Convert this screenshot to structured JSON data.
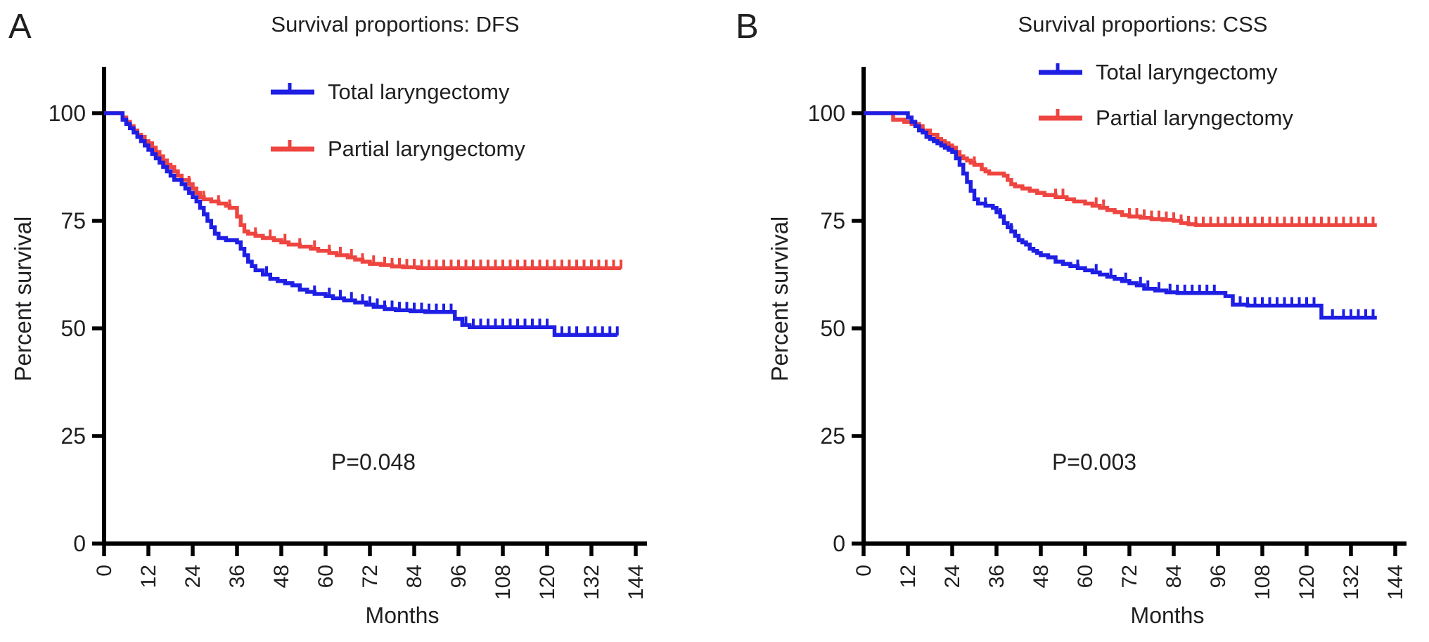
{
  "figure": {
    "background": "#ffffff",
    "text_color": "#1f1f21",
    "axis_color": "#000000",
    "colors": {
      "total": "#1e1ee4",
      "partial": "#ee4540"
    },
    "x_axis": {
      "label": "Months",
      "range": [
        0,
        144
      ],
      "ticks": [
        0,
        12,
        24,
        36,
        48,
        60,
        72,
        84,
        96,
        108,
        120,
        132,
        144
      ]
    },
    "y_axis": {
      "label": "Percent survival",
      "range": [
        0,
        100
      ],
      "ticks": [
        0,
        25,
        50,
        75,
        100
      ]
    }
  },
  "chart_data": [
    {
      "panel": "A",
      "type": "line",
      "subtype": "kaplan-meier-step",
      "title": "Survival proportions: DFS",
      "p_value_label": "P=0.048",
      "xlabel": "Months",
      "ylabel": "Percent survival",
      "xlim": [
        0,
        144
      ],
      "ylim": [
        0,
        100
      ],
      "legend_position": "top-center",
      "grid": false,
      "series": [
        {
          "name": "Total laryngectomy",
          "color_key": "total",
          "points": [
            [
              0,
              100
            ],
            [
              4,
              100
            ],
            [
              5,
              98.5
            ],
            [
              6,
              97.5
            ],
            [
              7,
              96.5
            ],
            [
              8,
              95.5
            ],
            [
              9,
              94.5
            ],
            [
              10,
              93.5
            ],
            [
              11,
              92.5
            ],
            [
              12,
              91.5
            ],
            [
              13,
              90.5
            ],
            [
              14,
              89.5
            ],
            [
              15,
              88.5
            ],
            [
              16,
              87.5
            ],
            [
              17,
              86.5
            ],
            [
              18,
              85.5
            ],
            [
              19,
              84.5
            ],
            [
              21,
              83.5
            ],
            [
              22,
              82.5
            ],
            [
              23,
              81.5
            ],
            [
              24,
              80.5
            ],
            [
              25,
              79.5
            ],
            [
              26,
              78
            ],
            [
              27,
              76.5
            ],
            [
              28,
              75
            ],
            [
              29,
              73.5
            ],
            [
              30,
              72
            ],
            [
              31,
              71
            ],
            [
              33,
              70.5
            ],
            [
              36,
              70
            ],
            [
              37,
              68.5
            ],
            [
              38,
              67
            ],
            [
              39,
              65.5
            ],
            [
              40,
              64.5
            ],
            [
              41,
              63.5
            ],
            [
              43,
              62.5
            ],
            [
              45,
              61.5
            ],
            [
              47,
              61
            ],
            [
              49,
              60.5
            ],
            [
              51,
              60
            ],
            [
              53,
              59
            ],
            [
              55,
              58.5
            ],
            [
              57,
              58
            ],
            [
              60,
              57.5
            ],
            [
              62,
              57
            ],
            [
              65,
              56.5
            ],
            [
              68,
              56
            ],
            [
              71,
              55.5
            ],
            [
              73,
              55
            ],
            [
              76,
              54.5
            ],
            [
              79,
              54.2
            ],
            [
              83,
              54
            ],
            [
              87,
              53.8
            ],
            [
              94,
              53.8
            ],
            [
              95,
              52.2
            ],
            [
              97,
              50.8
            ],
            [
              99,
              50.3
            ],
            [
              120,
              50.3
            ],
            [
              122,
              48.5
            ],
            [
              139,
              48.5
            ]
          ],
          "censor_months": [
            30,
            44,
            57,
            61,
            64,
            67,
            70,
            72,
            74,
            76,
            78,
            80,
            82,
            84,
            86,
            88,
            90,
            92,
            94,
            98,
            100,
            102,
            104,
            106,
            108,
            110,
            112,
            114,
            116,
            118,
            120,
            124,
            126,
            128,
            131,
            133,
            135,
            137,
            139
          ]
        },
        {
          "name": "Partial laryngectomy",
          "color_key": "partial",
          "points": [
            [
              0,
              100
            ],
            [
              4,
              100
            ],
            [
              5,
              99
            ],
            [
              6,
              98
            ],
            [
              7,
              97
            ],
            [
              8,
              96
            ],
            [
              9,
              95
            ],
            [
              10,
              94.5
            ],
            [
              11,
              93.5
            ],
            [
              12,
              93
            ],
            [
              13,
              92
            ],
            [
              14,
              91
            ],
            [
              15,
              90
            ],
            [
              16,
              89
            ],
            [
              17,
              88
            ],
            [
              18,
              87.5
            ],
            [
              19,
              86.5
            ],
            [
              20,
              85.5
            ],
            [
              21,
              84.5
            ],
            [
              23,
              83.5
            ],
            [
              24,
              82.5
            ],
            [
              25,
              81.5
            ],
            [
              26,
              80.5
            ],
            [
              27,
              80
            ],
            [
              29,
              79.5
            ],
            [
              31,
              79
            ],
            [
              33,
              78.5
            ],
            [
              34,
              78
            ],
            [
              36,
              76
            ],
            [
              37,
              74
            ],
            [
              38,
              72.5
            ],
            [
              39,
              72
            ],
            [
              41,
              71.5
            ],
            [
              43,
              71
            ],
            [
              46,
              70.5
            ],
            [
              48,
              70
            ],
            [
              50,
              69.5
            ],
            [
              53,
              69
            ],
            [
              56,
              68.5
            ],
            [
              58,
              68
            ],
            [
              61,
              67.5
            ],
            [
              63,
              67
            ],
            [
              66,
              66.5
            ],
            [
              68,
              66
            ],
            [
              70,
              65.5
            ],
            [
              72,
              65
            ],
            [
              75,
              64.7
            ],
            [
              78,
              64.4
            ],
            [
              81,
              64.2
            ],
            [
              85,
              64
            ],
            [
              140,
              64
            ]
          ],
          "censor_months": [
            23,
            27,
            31,
            34,
            41,
            45,
            49,
            53,
            57,
            61,
            64,
            67,
            70,
            73,
            76,
            78,
            80,
            82,
            84,
            86,
            88,
            90,
            92,
            94,
            96,
            98,
            100,
            102,
            104,
            106,
            108,
            110,
            112,
            114,
            116,
            118,
            120,
            122,
            124,
            126,
            128,
            130,
            132,
            134,
            136,
            138,
            140
          ]
        }
      ]
    },
    {
      "panel": "B",
      "type": "line",
      "subtype": "kaplan-meier-step",
      "title": "Survival proportions: CSS",
      "p_value_label": "P=0.003",
      "xlabel": "Months",
      "ylabel": "Percent survival",
      "xlim": [
        0,
        144
      ],
      "ylim": [
        0,
        100
      ],
      "legend_position": "top-center",
      "grid": false,
      "series": [
        {
          "name": "Total laryngectomy",
          "color_key": "total",
          "points": [
            [
              0,
              100
            ],
            [
              11,
              100
            ],
            [
              12,
              99
            ],
            [
              13,
              98
            ],
            [
              14,
              97
            ],
            [
              15,
              96
            ],
            [
              16,
              95.5
            ],
            [
              17,
              94.5
            ],
            [
              18,
              94
            ],
            [
              19,
              93.5
            ],
            [
              20,
              93
            ],
            [
              21,
              92.5
            ],
            [
              22,
              92
            ],
            [
              23,
              91.5
            ],
            [
              24,
              91
            ],
            [
              25,
              89.5
            ],
            [
              26,
              88
            ],
            [
              27,
              86
            ],
            [
              28,
              84
            ],
            [
              29,
              82
            ],
            [
              30,
              80
            ],
            [
              31,
              79
            ],
            [
              33,
              78.5
            ],
            [
              35,
              78
            ],
            [
              36,
              77
            ],
            [
              37,
              76
            ],
            [
              38,
              74.5
            ],
            [
              39,
              73.5
            ],
            [
              40,
              72.5
            ],
            [
              41,
              71.5
            ],
            [
              42,
              70.5
            ],
            [
              43,
              70
            ],
            [
              44,
              69.5
            ],
            [
              45,
              68.5
            ],
            [
              46,
              68
            ],
            [
              47,
              67.5
            ],
            [
              48,
              67
            ],
            [
              50,
              66.5
            ],
            [
              52,
              65.5
            ],
            [
              54,
              65
            ],
            [
              56,
              64.5
            ],
            [
              58,
              64
            ],
            [
              60,
              63.5
            ],
            [
              62,
              63
            ],
            [
              64,
              62.5
            ],
            [
              66,
              62
            ],
            [
              68,
              61.5
            ],
            [
              70,
              61
            ],
            [
              72,
              60.5
            ],
            [
              74,
              60
            ],
            [
              76,
              59.2
            ],
            [
              79,
              58.8
            ],
            [
              82,
              58.4
            ],
            [
              85,
              58.2
            ],
            [
              96,
              58.2
            ],
            [
              98,
              57.5
            ],
            [
              100,
              55.5
            ],
            [
              104,
              55.3
            ],
            [
              123,
              55.3
            ],
            [
              124,
              52.5
            ],
            [
              139,
              52.5
            ]
          ],
          "censor_months": [
            33,
            37,
            40,
            58,
            63,
            67,
            71,
            75,
            77,
            80,
            83,
            85,
            87,
            89,
            91,
            93,
            95,
            102,
            104,
            106,
            108,
            110,
            112,
            114,
            116,
            118,
            120,
            122,
            127,
            130,
            132,
            134,
            136,
            138
          ]
        },
        {
          "name": "Partial laryngectomy",
          "color_key": "partial",
          "points": [
            [
              0,
              100
            ],
            [
              7,
              100
            ],
            [
              8,
              98.5
            ],
            [
              11,
              98
            ],
            [
              13,
              97.5
            ],
            [
              15,
              97
            ],
            [
              16,
              96
            ],
            [
              18,
              95
            ],
            [
              20,
              94
            ],
            [
              21,
              93.5
            ],
            [
              22,
              93
            ],
            [
              23,
              92.5
            ],
            [
              24,
              92
            ],
            [
              25,
              91
            ],
            [
              26,
              90
            ],
            [
              27,
              89.5
            ],
            [
              28,
              89
            ],
            [
              29,
              88.5
            ],
            [
              30,
              88
            ],
            [
              32,
              87
            ],
            [
              33,
              86.5
            ],
            [
              34,
              86
            ],
            [
              38,
              85.5
            ],
            [
              39,
              84.5
            ],
            [
              40,
              83.5
            ],
            [
              41,
              83
            ],
            [
              43,
              82.5
            ],
            [
              45,
              82
            ],
            [
              47,
              81.5
            ],
            [
              49,
              81
            ],
            [
              52,
              80.5
            ],
            [
              55,
              80
            ],
            [
              57,
              79.5
            ],
            [
              60,
              79
            ],
            [
              62,
              78.5
            ],
            [
              64,
              78
            ],
            [
              66,
              77.5
            ],
            [
              68,
              77
            ],
            [
              70,
              76.3
            ],
            [
              72,
              76
            ],
            [
              75,
              75.7
            ],
            [
              78,
              75.4
            ],
            [
              81,
              75.2
            ],
            [
              84,
              75
            ],
            [
              86,
              74.5
            ],
            [
              88,
              74.2
            ],
            [
              90,
              74
            ],
            [
              139,
              74
            ]
          ],
          "censor_months": [
            30,
            52,
            54,
            63,
            65,
            72,
            74,
            76,
            78,
            80,
            82,
            84,
            86,
            88,
            90,
            92,
            94,
            96,
            98,
            100,
            102,
            104,
            106,
            108,
            110,
            112,
            114,
            116,
            118,
            120,
            122,
            124,
            126,
            128,
            130,
            132,
            134,
            136,
            138
          ]
        }
      ]
    }
  ]
}
